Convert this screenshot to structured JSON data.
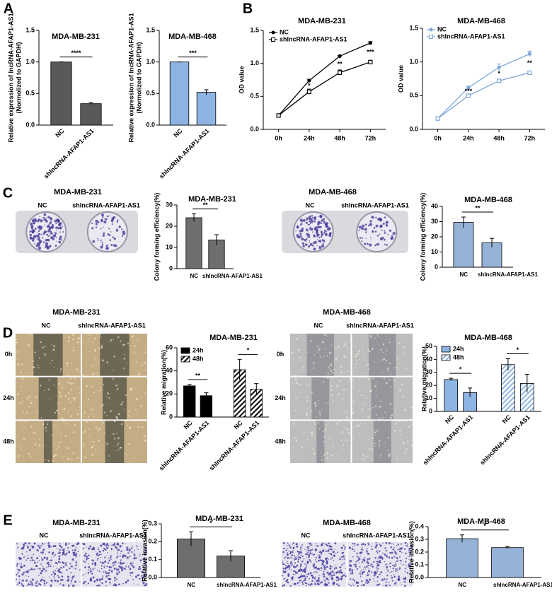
{
  "figure": {
    "panel_labels": [
      "A",
      "B",
      "C",
      "D",
      "E"
    ],
    "photo_sets": [
      {
        "title": "MDA-MB-231",
        "columns": [
          "NC",
          "shlncRNA-AFAP1-AS1"
        ]
      },
      {
        "title": "MDA-MB-468",
        "columns": [
          "NC",
          "shlncRNA-AFAP1-AS1"
        ]
      },
      {
        "title": "MDA-MB-231",
        "columns": [
          "NC",
          "shlncRNA-AFAP1-AS1"
        ],
        "rows": [
          "0h",
          "24h",
          "48h"
        ]
      },
      {
        "title": "MDA-MB-468",
        "columns": [
          "NC",
          "shlncRNA-AFAP1-AS1"
        ],
        "rows": [
          "0h",
          "24h",
          "48h"
        ]
      },
      {
        "title": "MDA-MB-231",
        "columns": [
          "NC",
          "shlncRNA-AFAP1-AS1"
        ]
      },
      {
        "title": "MDA-MB-468",
        "columns": [
          "NC",
          "shlncRNA-AFAP1-AS1"
        ]
      }
    ]
  },
  "chart_data": [
    {
      "type": "bar",
      "title": "MDA-MB-231",
      "ylabel": [
        "Relative expression of lncRNA-AFAP1-AS1",
        "(Normolized to GAPDH)"
      ],
      "categories": [
        "NC",
        "shlncRNA-AFAP1-AS1"
      ],
      "series": [
        {
          "color": "#595959",
          "values": [
            1.0,
            0.34
          ],
          "errors": [
            0,
            0.02
          ]
        }
      ],
      "ylim": [
        0,
        1.5
      ],
      "yticks": [
        {
          "value": 0,
          "label": "0.0"
        },
        0.5,
        {
          "value": 1,
          "label": "1.0"
        },
        1.5
      ],
      "annotations": [
        "****"
      ]
    },
    {
      "type": "bar",
      "title": "MDA-MB-468",
      "ylabel": [
        "Relative expression of lncRNA-AFAP1-AS1",
        "(Normolized to GAPDH)"
      ],
      "categories": [
        "NC",
        "shlncRNA-AFAP1-AS1"
      ],
      "series": [
        {
          "color": "#8db3e2",
          "values": [
            1.0,
            0.52
          ],
          "errors": [
            0,
            0.04
          ]
        }
      ],
      "ylim": [
        0,
        1.5
      ],
      "yticks": [
        {
          "value": 0,
          "label": "0.0"
        },
        0.5,
        {
          "value": 1,
          "label": "1.0"
        },
        1.5
      ],
      "annotations": [
        "***"
      ]
    },
    {
      "type": "line",
      "title": "MDA-MB-231",
      "ylabel": [
        "OD value"
      ],
      "categories": [
        "0h",
        "24h",
        "48h",
        "72h"
      ],
      "series": [
        {
          "name": "NC",
          "color": "#000000",
          "marker": "circle",
          "values": [
            0.21,
            0.74,
            1.11,
            1.31
          ],
          "errors": [
            0.01,
            0.02,
            0.01,
            0.02
          ]
        },
        {
          "name": "shlncRNA-AFAP1-AS1",
          "color": "#000000",
          "marker": "square",
          "values": [
            0.21,
            0.57,
            0.86,
            1.02
          ],
          "errors": [
            0.01,
            0.04,
            0.04,
            0.02
          ]
        }
      ],
      "ylim": [
        0,
        1.5
      ],
      "yticks": [
        {
          "value": 0,
          "label": "0.0"
        },
        0.5,
        {
          "value": 1,
          "label": "1.0"
        },
        1.5
      ],
      "annotations": [
        "*",
        "**",
        "***"
      ]
    },
    {
      "type": "line",
      "title": "MDA-MB-468",
      "ylabel": [
        "OD value"
      ],
      "categories": [
        "0h",
        "24h",
        "48h",
        "72h"
      ],
      "series": [
        {
          "name": "NC",
          "color": "#7ea6d8",
          "marker": "circle",
          "values": [
            0.16,
            0.62,
            0.92,
            1.12
          ],
          "errors": [
            0.01,
            0.02,
            0.05,
            0.04
          ]
        },
        {
          "name": "shlncRNA-AFAP1-AS1",
          "color": "#7ea6d8",
          "marker": "square",
          "values": [
            0.16,
            0.5,
            0.72,
            0.84
          ],
          "errors": [
            0.01,
            0.02,
            0.02,
            0.02
          ]
        }
      ],
      "ylim": [
        0,
        1.5
      ],
      "yticks": [
        {
          "value": 0,
          "label": "0.0"
        },
        0.5,
        {
          "value": 1,
          "label": "1.0"
        },
        1.5
      ],
      "annotations": [
        "***",
        "*",
        "**"
      ]
    },
    {
      "type": "bar",
      "title": "MDA-MB-231",
      "ylabel": [
        "Colony forming efficiency(%)"
      ],
      "categories": [
        "NC",
        "shlncRNA-AFAP1-AS1"
      ],
      "series": [
        {
          "color": "#6e6e6e",
          "values": [
            24,
            13.5
          ],
          "errors": [
            1.8,
            2.5
          ]
        }
      ],
      "ylim": [
        0,
        30
      ],
      "yticks": [
        0,
        10,
        20,
        30
      ],
      "annotations": [
        "**"
      ]
    },
    {
      "type": "bar",
      "title": "MDA-MB-468",
      "ylabel": [
        "Colony forming efficiency(%)"
      ],
      "categories": [
        "NC",
        "shlncRNA-AFAP1-AS1"
      ],
      "series": [
        {
          "color": "#95b3d7",
          "values": [
            29.5,
            16
          ],
          "errors": [
            3.5,
            3
          ]
        }
      ],
      "ylim": [
        0,
        40
      ],
      "yticks": [
        0,
        10,
        20,
        30,
        40
      ],
      "annotations": [
        "**"
      ]
    },
    {
      "type": "bar",
      "title": "MDA-MB-231",
      "ylabel": [
        "Relative migration(%)"
      ],
      "categories": [
        "NC",
        "shlncRNA-AFAP1-AS1"
      ],
      "series": [
        {
          "name": "24h",
          "color": "#000000",
          "values": [
            27,
            18.5
          ],
          "errors": [
            1.2,
            2.5
          ]
        },
        {
          "name": "48h",
          "color": "#000000",
          "hatch": true,
          "values": [
            41,
            24
          ],
          "errors": [
            9,
            5
          ]
        }
      ],
      "ylim": [
        0,
        60
      ],
      "yticks": [
        0,
        20,
        40,
        60
      ],
      "annotations": [
        "**",
        "*"
      ]
    },
    {
      "type": "bar",
      "title": "MDA-MB-468",
      "ylabel": [
        "Relative migration(%)"
      ],
      "categories": [
        "NC",
        "shlncRNA-AFAP1-AS1"
      ],
      "series": [
        {
          "name": "24h",
          "color": "#8db4e2",
          "values": [
            24.5,
            14.5
          ],
          "errors": [
            1,
            3.5
          ]
        },
        {
          "name": "48h",
          "color": "#8db4e2",
          "hatch": true,
          "values": [
            36,
            21.5
          ],
          "errors": [
            4.5,
            7
          ]
        }
      ],
      "ylim": [
        0,
        50
      ],
      "yticks": [
        0,
        10,
        20,
        30,
        40,
        50
      ],
      "annotations": [
        "*",
        "*"
      ]
    },
    {
      "type": "bar",
      "title": "MDA-MB-231",
      "ylabel": [
        "Relative invasion(%)"
      ],
      "categories": [
        "NC",
        "shlncRNA-AFAP1-AS1"
      ],
      "series": [
        {
          "color": "#6e6e6e",
          "values": [
            0.215,
            0.12
          ],
          "errors": [
            0.04,
            0.03
          ]
        }
      ],
      "ylim": [
        0,
        0.3
      ],
      "yticks": [
        {
          "value": 0,
          "label": "0.0"
        },
        0.1,
        0.2,
        0.3
      ],
      "annotations": [
        "*"
      ]
    },
    {
      "type": "bar",
      "title": "MDA-MB-468",
      "ylabel": [
        "Relative invasion(%)"
      ],
      "categories": [
        "NC",
        "shlncRNA-AFAP1-AS1"
      ],
      "series": [
        {
          "color": "#95b3d7",
          "values": [
            0.305,
            0.235
          ],
          "errors": [
            0.03,
            0.008
          ]
        }
      ],
      "ylim": [
        0,
        0.4
      ],
      "yticks": [
        {
          "value": 0,
          "label": "0.0"
        },
        0.1,
        0.2,
        0.3,
        0.4
      ],
      "annotations": [
        "*"
      ]
    }
  ]
}
